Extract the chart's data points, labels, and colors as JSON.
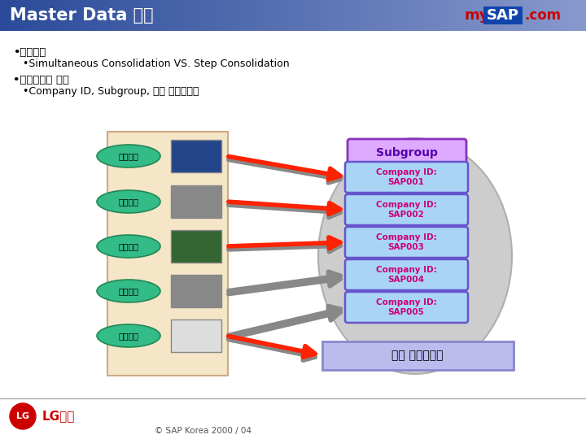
{
  "title": "Master Data 구성",
  "bg_color": "#ffffff",
  "header_bg_left": "#2a4a9a",
  "header_bg_right": "#8899cc",
  "header_text_color": "#ffffff",
  "bullet1": "•연결절자",
  "bullet1_sub": "•Simultaneous Consolidation VS. Step Consolidation",
  "bullet2": "•연결시스템 구성",
  "bullet2_sub": "•Company ID, Subgroup, 연결 계정과목표",
  "left_labels": [
    "지배회사",
    "미주법인",
    "남풀업체",
    "하청업체",
    "운송업체"
  ],
  "company_labels": [
    "Company ID:\nSAP001",
    "Company ID:\nSAP002",
    "Company ID:\nSAP003",
    "Company ID:\nSAP004",
    "Company ID:\nSAP005"
  ],
  "subgroup_label": "Subgroup",
  "bottom_label": "연결 계정과목표",
  "footer": "© SAP Korea 2000 / 04",
  "left_box_bg": "#f5e6c8",
  "left_box_border": "#ccaa88",
  "oval_fill": "#33bb88",
  "oval_border": "#228855",
  "oval_text_color": "#000000",
  "company_box_bg": "#aad4f5",
  "company_box_border": "#6655cc",
  "company_text_color": "#cc0077",
  "subgroup_box_bg": "#ddaaff",
  "subgroup_box_border": "#8833bb",
  "subgroup_text_color": "#5500aa",
  "ellipse_bg": "#c8c8c8",
  "ellipse_border": "#aaaaaa",
  "bottom_box_bg": "#bbbbee",
  "bottom_box_border": "#8888cc",
  "arrow_red": "#ff2200",
  "arrow_gray": "#888888",
  "footer_line_color": "#aaaaaa",
  "lg_circle_color": "#cc0000",
  "lg_text_color": "#cc0000"
}
